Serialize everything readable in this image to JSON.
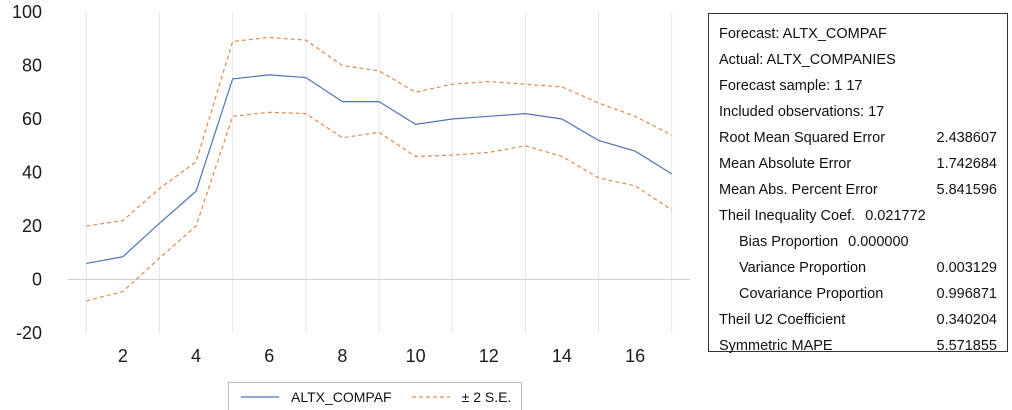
{
  "chart_data": {
    "type": "line",
    "x": [
      1,
      2,
      3,
      4,
      5,
      6,
      7,
      8,
      9,
      10,
      11,
      12,
      13,
      14,
      15,
      16,
      17
    ],
    "xticks": [
      2,
      4,
      6,
      8,
      10,
      12,
      14,
      16
    ],
    "ylim": [
      -20,
      100
    ],
    "yticks": [
      -20,
      0,
      20,
      40,
      60,
      80,
      100
    ],
    "grid": "vertical",
    "legend_position": "bottom",
    "series": [
      {
        "name": "ALTX_COMPAF",
        "color": "#4f74b8",
        "style": "solid",
        "values": [
          6,
          8.5,
          21,
          33,
          75,
          76.5,
          75.5,
          66.5,
          66.5,
          58,
          60,
          61,
          62,
          60,
          52,
          48,
          39.5
        ]
      },
      {
        "name": "± 2 S.E.",
        "color": "#e08a4f",
        "style": "dashed",
        "values": [
          20,
          22,
          34,
          44,
          89,
          90.5,
          89.5,
          80,
          78,
          70,
          73,
          74,
          73,
          72,
          66,
          61,
          54
        ]
      },
      {
        "name": "± 2 S.E.",
        "color": "#e08a4f",
        "style": "dashed",
        "values": [
          -8,
          -4.5,
          8,
          20,
          61,
          62.5,
          62,
          53,
          55,
          46,
          46.5,
          47.5,
          50,
          46,
          38,
          35,
          26
        ]
      }
    ]
  },
  "legend": [
    {
      "label": "ALTX_COMPAF",
      "color": "#4f74b8",
      "style": "solid"
    },
    {
      "label": "± 2 S.E.",
      "color": "#e08a4f",
      "style": "dashed"
    }
  ],
  "stats": [
    {
      "label": "Forecast: ALTX_COMPAF",
      "value": ""
    },
    {
      "label": "Actual: ALTX_COMPANIES",
      "value": ""
    },
    {
      "label": "Forecast sample: 1 17",
      "value": ""
    },
    {
      "label": "Included observations: 17",
      "value": ""
    },
    {
      "label": "Root Mean Squared Error",
      "value": "2.438607"
    },
    {
      "label": "Mean Absolute Error",
      "value": "1.742684"
    },
    {
      "label": "Mean Abs. Percent Error",
      "value": "5.841596"
    },
    {
      "label": "Theil Inequality Coef.",
      "value": "0.021772",
      "inline": true
    },
    {
      "label": "Bias Proportion",
      "value": "0.000000",
      "indent": true,
      "inline": true
    },
    {
      "label": "Variance Proportion",
      "value": "0.003129",
      "indent": true
    },
    {
      "label": "Covariance Proportion",
      "value": "0.996871",
      "indent": true
    },
    {
      "label": "Theil U2 Coefficient",
      "value": "0.340204"
    },
    {
      "label": "Symmetric MAPE",
      "value": "5.571855"
    }
  ]
}
